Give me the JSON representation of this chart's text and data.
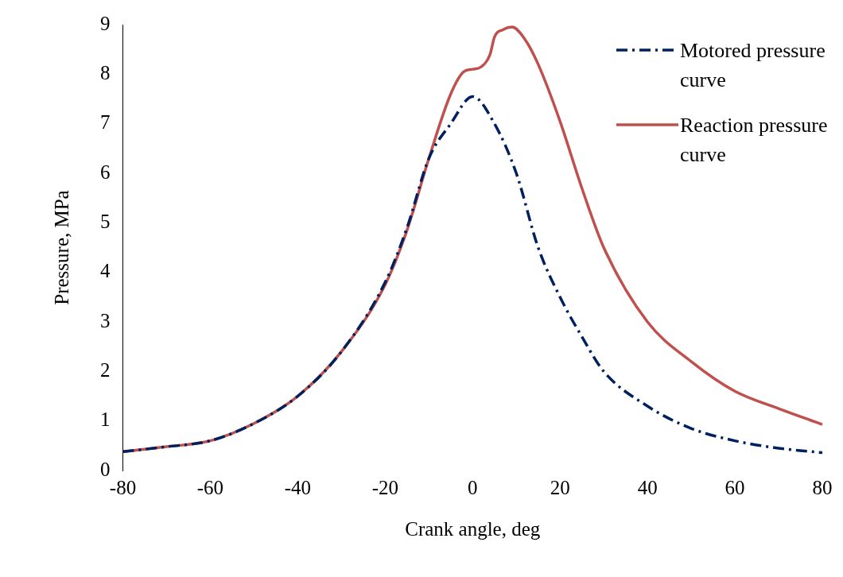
{
  "chart_data": {
    "type": "line",
    "xlabel": "Crank angle, deg",
    "ylabel": "Pressure, MPa",
    "xlim": [
      -80,
      80
    ],
    "xticks": [
      -80,
      -60,
      -40,
      -20,
      0,
      20,
      40,
      60,
      80
    ],
    "ylim": [
      0,
      9
    ],
    "yticks": [
      0,
      1,
      2,
      3,
      4,
      5,
      6,
      7,
      8,
      9
    ],
    "grid": false,
    "legend": "top right",
    "marker": "none",
    "series": [
      {
        "name": "Motored pressure curve",
        "color": "#002060",
        "line_style": "dashed",
        "x": [
          -80,
          -70,
          -60,
          -50,
          -40,
          -30,
          -20,
          -15,
          -10,
          -5,
          0,
          5,
          10,
          15,
          20,
          25,
          30,
          40,
          50,
          60,
          70,
          80
        ],
        "values": [
          0.38,
          0.48,
          0.6,
          0.95,
          1.5,
          2.4,
          3.8,
          4.9,
          6.3,
          7.0,
          7.55,
          7.0,
          6.0,
          4.5,
          3.5,
          2.7,
          2.0,
          1.3,
          0.85,
          0.6,
          0.45,
          0.36
        ]
      },
      {
        "name": "Reaction pressure curve",
        "color": "#c0504d",
        "line_style": "solid",
        "x": [
          -80,
          -70,
          -60,
          -50,
          -40,
          -30,
          -20,
          -15,
          -10,
          -5,
          -2,
          0,
          2,
          4,
          5,
          7,
          9,
          12,
          15,
          20,
          25,
          30,
          40,
          50,
          60,
          70,
          80
        ],
        "values": [
          0.38,
          0.48,
          0.6,
          0.95,
          1.5,
          2.4,
          3.75,
          4.85,
          6.3,
          7.6,
          8.05,
          8.1,
          8.15,
          8.4,
          8.75,
          8.9,
          8.95,
          8.7,
          8.2,
          7.05,
          5.7,
          4.5,
          3.0,
          2.2,
          1.6,
          1.25,
          0.93
        ]
      }
    ]
  }
}
